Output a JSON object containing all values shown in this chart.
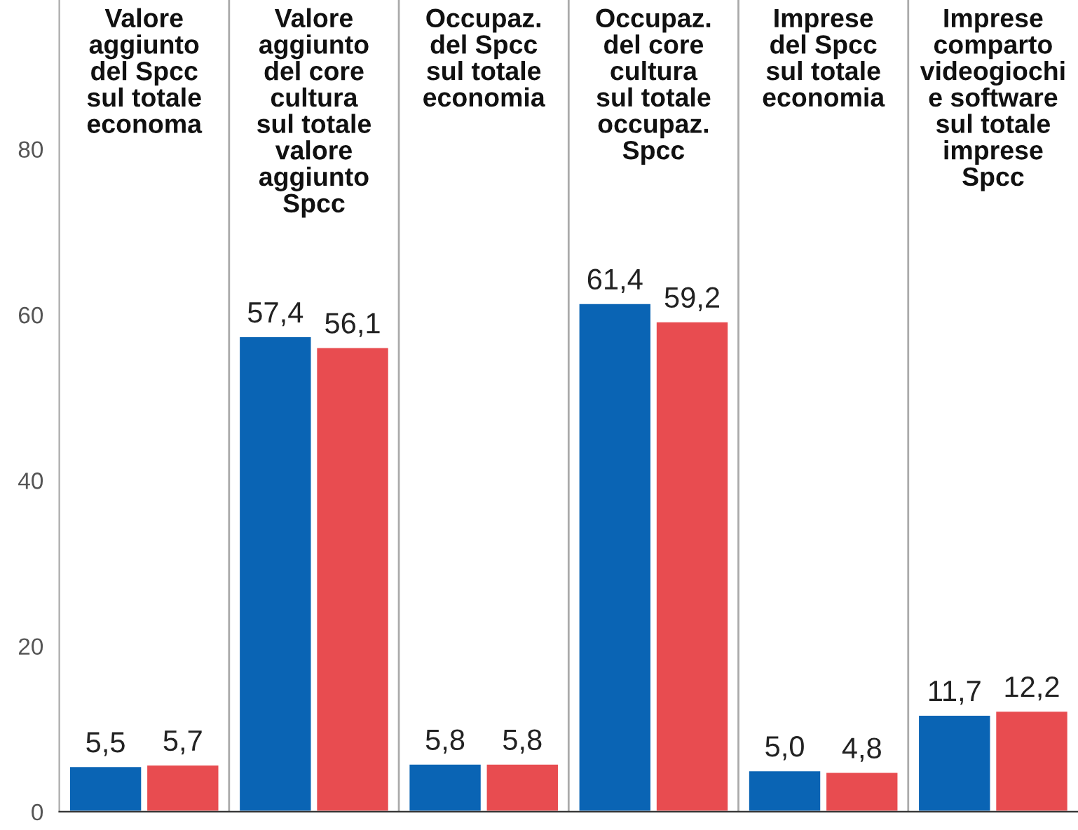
{
  "chart_data": {
    "type": "bar",
    "categories": [
      "Valore\naggiunto\ndel Spcc\nsul totale\neconoma",
      "Valore\naggiunto\ndel core\ncultura\nsul totale\nvalore\naggiunto\nSpcc",
      "Occupaz.\ndel Spcc\nsul totale\neconomia",
      "Occupaz.\ndel core\ncultura\nsul totale\noccupaz.\nSpcc",
      "Imprese\ndel Spcc\nsul totale\neconomia",
      "Imprese\ncomparto\nvideogiochi\ne software\nsul totale\nimprese\nSpcc"
    ],
    "series": [
      {
        "color": "#0a64b4",
        "values": [
          5.5,
          57.4,
          5.8,
          61.4,
          5.0,
          11.7
        ],
        "value_labels": [
          "5,5",
          "57,4",
          "5,8",
          "61,4",
          "5,0",
          "11,7"
        ]
      },
      {
        "color": "#e84c50",
        "values": [
          5.7,
          56.1,
          5.8,
          59.2,
          4.8,
          12.2
        ],
        "value_labels": [
          "5,7",
          "56,1",
          "5,8",
          "59,2",
          "4,8",
          "12,2"
        ]
      }
    ],
    "ylim": [
      0,
      98
    ],
    "yticks": [
      0,
      20,
      40,
      60,
      80
    ],
    "grid": "x"
  }
}
